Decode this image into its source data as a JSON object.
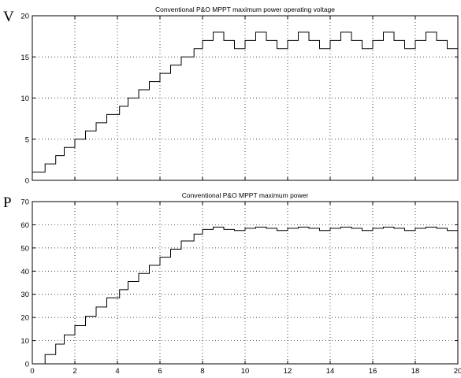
{
  "chart_data": [
    {
      "type": "line",
      "title": "Conventional P&O MPPT maximum power operating voltage",
      "ylabel": "V",
      "xlabel": "",
      "xlim": [
        0,
        20
      ],
      "ylim": [
        0,
        20
      ],
      "xticks": [
        "0",
        "2",
        "4",
        "6",
        "8",
        "10",
        "12",
        "14",
        "16",
        "18",
        "20"
      ],
      "yticks": [
        "0",
        "5",
        "10",
        "15",
        "20"
      ],
      "grid": true,
      "step": true,
      "x": [
        0,
        0.6,
        1.1,
        1.5,
        2.0,
        2.5,
        3.0,
        3.5,
        4.1,
        4.5,
        5.0,
        5.5,
        6.0,
        6.5,
        7.0,
        7.6,
        8.0,
        8.5,
        9.0,
        9.5,
        10.0,
        10.5,
        11.0,
        11.5,
        12.0,
        12.5,
        13.0,
        13.5,
        14.0,
        14.5,
        15.0,
        15.5,
        16.0,
        16.5,
        17.0,
        17.5,
        18.0,
        18.5,
        19.0,
        19.5,
        20.0
      ],
      "y": [
        1,
        2,
        3,
        4,
        5,
        6,
        7,
        8,
        9,
        10,
        11,
        12,
        13,
        14,
        15,
        16,
        17,
        18,
        17,
        16,
        17,
        18,
        17,
        16,
        17,
        18,
        17,
        16,
        17,
        18,
        17,
        16,
        17,
        18,
        17,
        16,
        17,
        18,
        17,
        16,
        16
      ]
    },
    {
      "type": "line",
      "title": "Conventional P&O MPPT maximum power",
      "ylabel": "P",
      "xlabel": "",
      "xlim": [
        0,
        20
      ],
      "ylim": [
        0,
        70
      ],
      "xticks": [
        "0",
        "2",
        "4",
        "6",
        "8",
        "10",
        "12",
        "14",
        "16",
        "18",
        "20"
      ],
      "yticks": [
        "0",
        "10",
        "20",
        "30",
        "40",
        "50",
        "60",
        "70"
      ],
      "grid": true,
      "step": true,
      "x": [
        0,
        0.6,
        1.1,
        1.5,
        2.0,
        2.5,
        3.0,
        3.5,
        4.1,
        4.5,
        5.0,
        5.5,
        6.0,
        6.5,
        7.0,
        7.6,
        8.0,
        8.5,
        9.0,
        9.5,
        10.0,
        10.5,
        11.0,
        11.5,
        12.0,
        12.5,
        13.0,
        13.5,
        14.0,
        14.5,
        15.0,
        15.5,
        16.0,
        16.5,
        17.0,
        17.5,
        18.0,
        18.5,
        19.0,
        19.5,
        20.0
      ],
      "y": [
        0,
        4,
        8.5,
        12.5,
        16.5,
        20.5,
        24.5,
        28.5,
        32,
        35.5,
        39,
        42.5,
        46,
        49.5,
        53,
        56,
        58,
        59,
        58,
        57.5,
        58.5,
        59,
        58.5,
        57.5,
        58.5,
        59,
        58.5,
        57.5,
        58.5,
        59,
        58.5,
        57.5,
        58.5,
        59,
        58.5,
        57.5,
        58.5,
        59,
        58.5,
        57.5,
        57.5
      ]
    }
  ]
}
